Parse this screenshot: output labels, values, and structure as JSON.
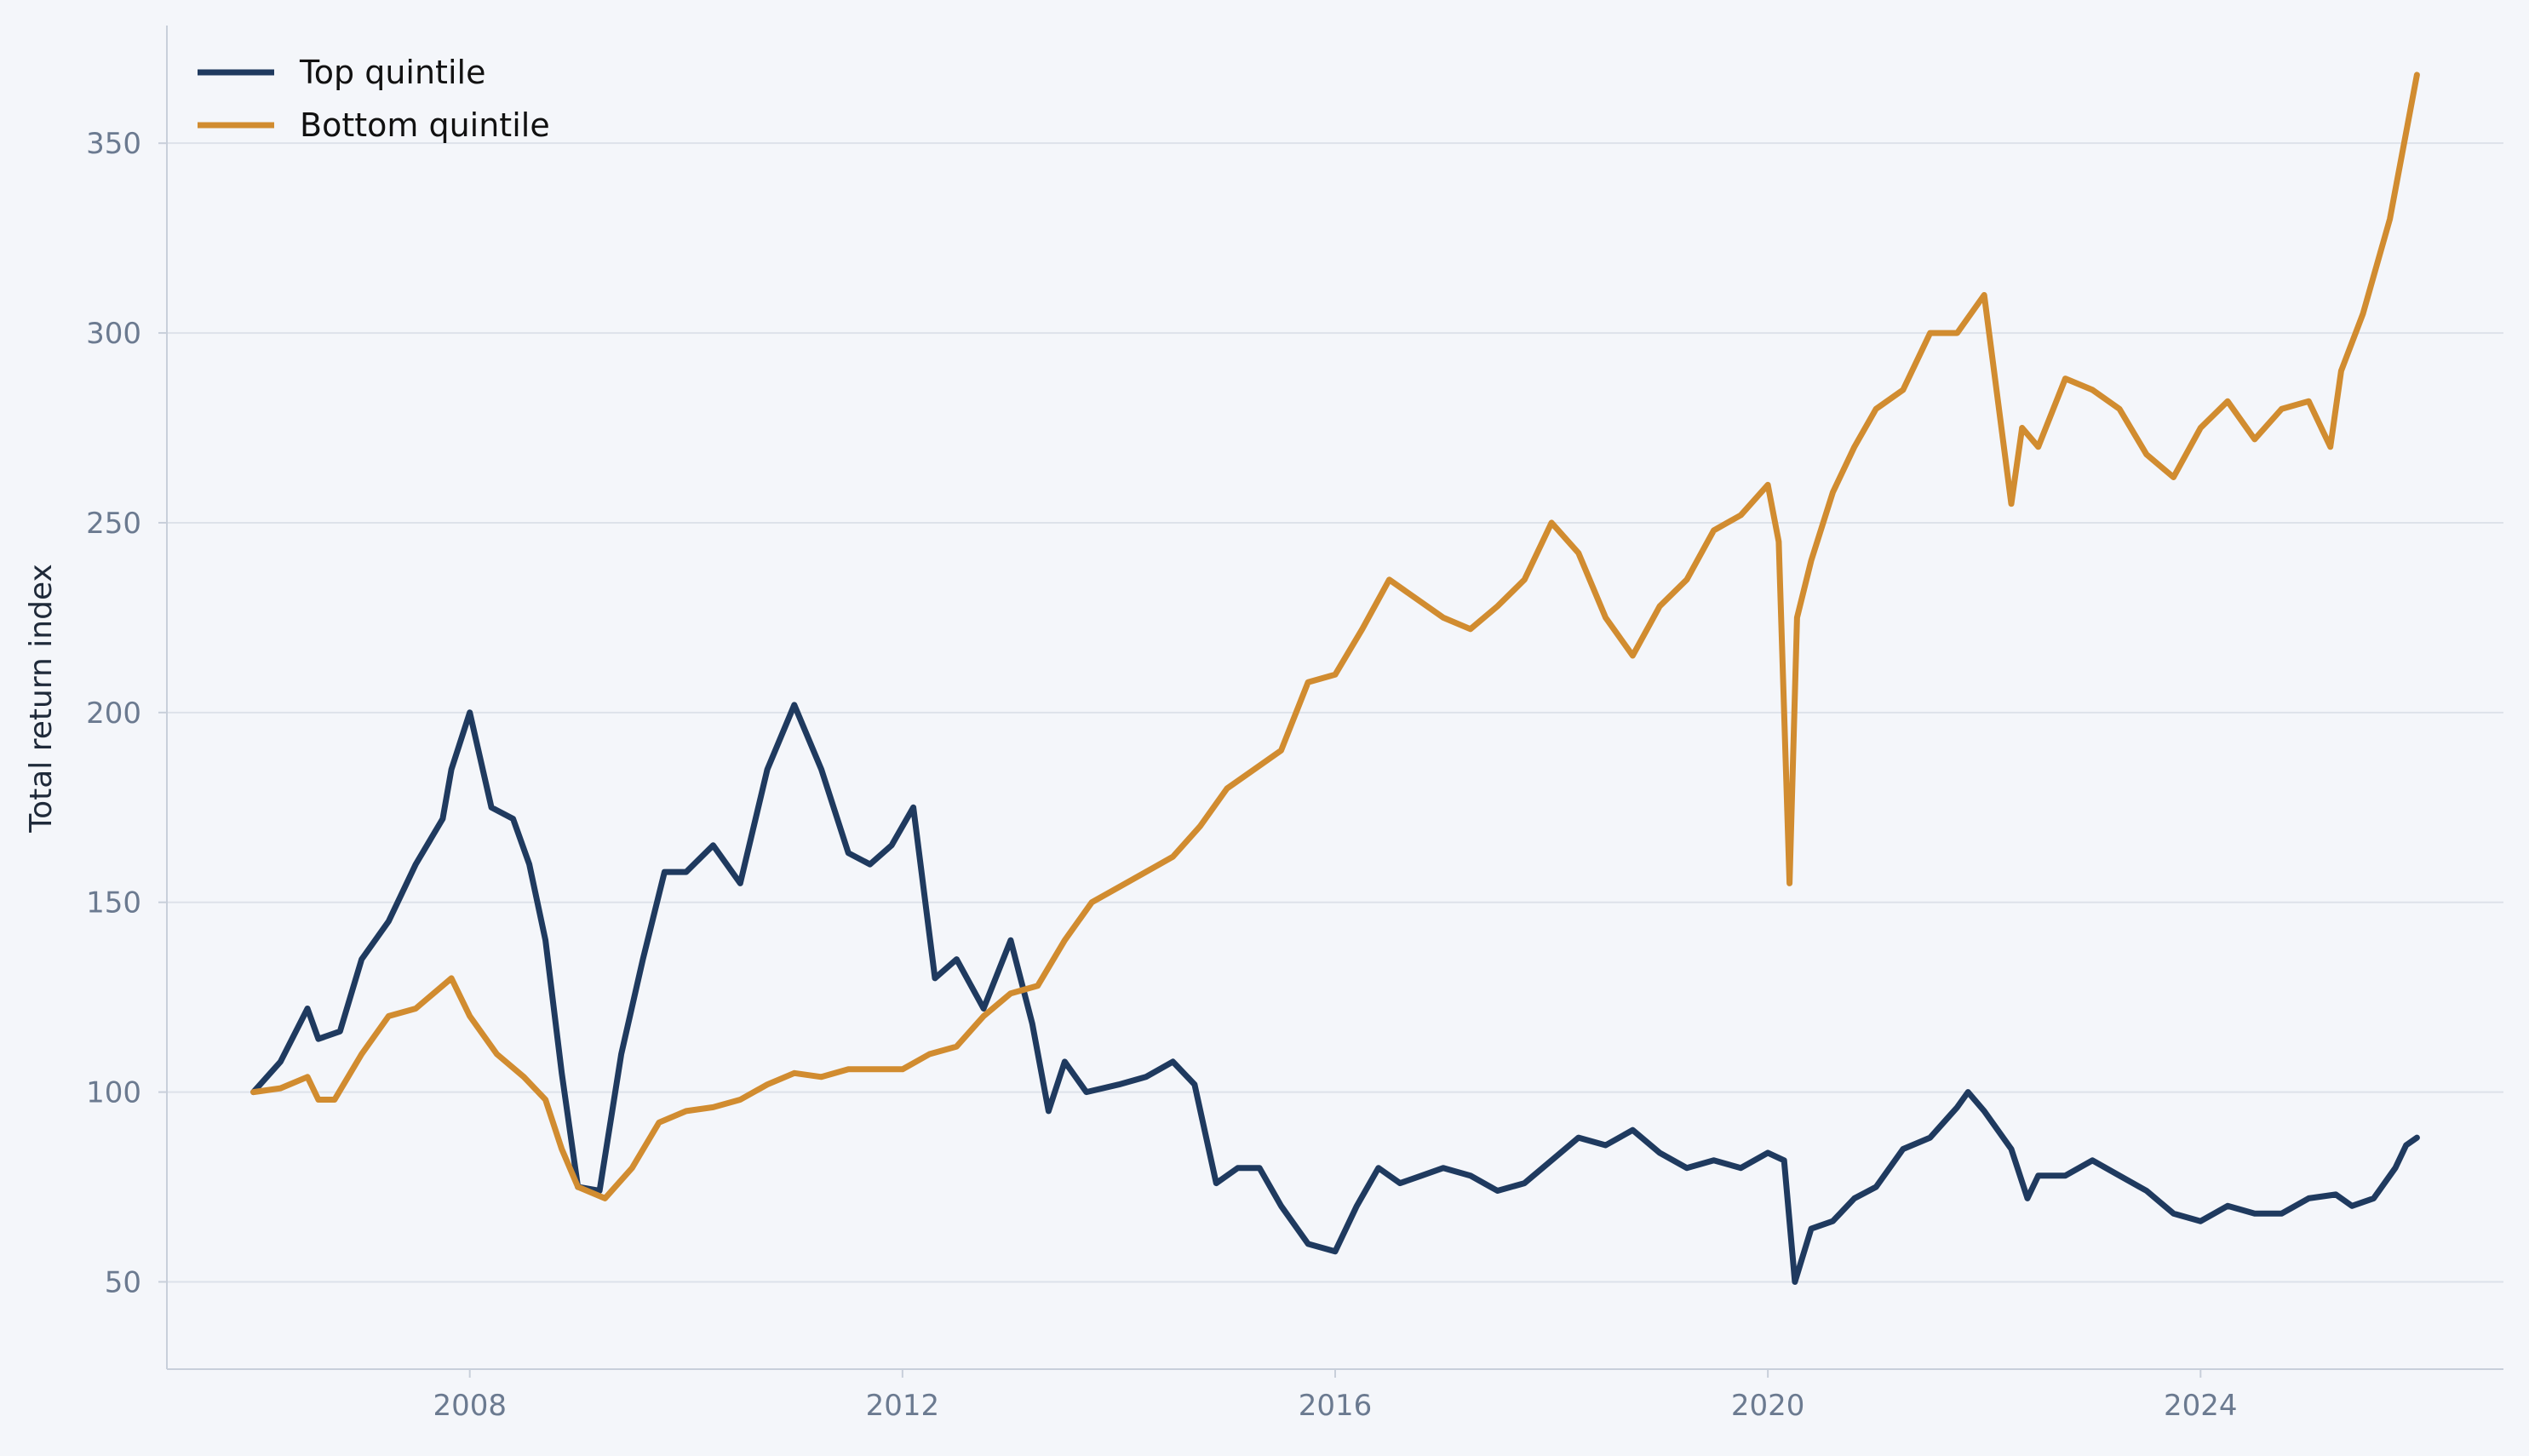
{
  "chart_data": {
    "type": "line",
    "title": "",
    "xlabel": "",
    "ylabel": "Total return index",
    "xlim": [
      2005.2,
      2026.8
    ],
    "ylim": [
      27,
      381
    ],
    "x_ticks": [
      2008,
      2012,
      2016,
      2020,
      2024
    ],
    "y_ticks": [
      50,
      100,
      150,
      200,
      250,
      300,
      350
    ],
    "grid": "horizontal",
    "legend_position": "top-left",
    "colors": {
      "background": "#f4f6fa",
      "grid": "#dde2ea",
      "axis": "#c8cfda",
      "tick_text": "#6b7a90"
    },
    "series": [
      {
        "name": "Top quintile",
        "color": "#1f3a5f",
        "x": [
          2006.0,
          2006.25,
          2006.5,
          2006.6,
          2006.8,
          2007.0,
          2007.25,
          2007.5,
          2007.75,
          2007.83,
          2008.0,
          2008.2,
          2008.4,
          2008.55,
          2008.7,
          2008.85,
          2009.0,
          2009.2,
          2009.4,
          2009.6,
          2009.8,
          2010.0,
          2010.25,
          2010.5,
          2010.75,
          2011.0,
          2011.25,
          2011.5,
          2011.7,
          2011.9,
          2012.1,
          2012.3,
          2012.5,
          2012.75,
          2013.0,
          2013.2,
          2013.35,
          2013.5,
          2013.7,
          2014.0,
          2014.25,
          2014.5,
          2014.7,
          2014.9,
          2015.1,
          2015.3,
          2015.5,
          2015.75,
          2016.0,
          2016.2,
          2016.4,
          2016.6,
          2016.8,
          2017.0,
          2017.25,
          2017.5,
          2017.75,
          2018.0,
          2018.25,
          2018.5,
          2018.75,
          2019.0,
          2019.25,
          2019.5,
          2019.75,
          2020.0,
          2020.15,
          2020.25,
          2020.4,
          2020.6,
          2020.8,
          2021.0,
          2021.25,
          2021.5,
          2021.75,
          2021.85,
          2022.0,
          2022.25,
          2022.4,
          2022.5,
          2022.75,
          2023.0,
          2023.25,
          2023.5,
          2023.75,
          2024.0,
          2024.25,
          2024.5,
          2024.75,
          2025.0,
          2025.25,
          2025.4,
          2025.6,
          2025.8,
          2025.9,
          2026.0
        ],
        "values": [
          100,
          108,
          122,
          114,
          116,
          135,
          145,
          160,
          172,
          185,
          200,
          175,
          172,
          160,
          140,
          105,
          75,
          74,
          110,
          135,
          158,
          158,
          165,
          155,
          185,
          202,
          185,
          163,
          160,
          165,
          175,
          130,
          135,
          122,
          140,
          118,
          95,
          108,
          100,
          102,
          104,
          108,
          102,
          76,
          80,
          80,
          70,
          60,
          58,
          70,
          80,
          76,
          78,
          80,
          78,
          74,
          76,
          82,
          88,
          86,
          90,
          84,
          80,
          82,
          80,
          84,
          82,
          50,
          64,
          66,
          72,
          75,
          85,
          88,
          96,
          100,
          95,
          85,
          72,
          78,
          78,
          82,
          78,
          74,
          68,
          66,
          70,
          68,
          68,
          72,
          73,
          70,
          72,
          80,
          86,
          88
        ]
      },
      {
        "name": "Bottom quintile",
        "color": "#d18c30",
        "x": [
          2006.0,
          2006.25,
          2006.5,
          2006.6,
          2006.75,
          2007.0,
          2007.25,
          2007.5,
          2007.83,
          2008.0,
          2008.25,
          2008.5,
          2008.7,
          2008.85,
          2009.0,
          2009.25,
          2009.5,
          2009.75,
          2010.0,
          2010.25,
          2010.5,
          2010.75,
          2011.0,
          2011.25,
          2011.5,
          2011.75,
          2012.0,
          2012.25,
          2012.5,
          2012.75,
          2013.0,
          2013.25,
          2013.5,
          2013.75,
          2014.0,
          2014.25,
          2014.5,
          2014.75,
          2015.0,
          2015.25,
          2015.5,
          2015.75,
          2016.0,
          2016.25,
          2016.5,
          2016.75,
          2017.0,
          2017.25,
          2017.5,
          2017.75,
          2018.0,
          2018.25,
          2018.5,
          2018.75,
          2019.0,
          2019.25,
          2019.5,
          2019.75,
          2020.0,
          2020.1,
          2020.2,
          2020.27,
          2020.4,
          2020.6,
          2020.8,
          2021.0,
          2021.25,
          2021.5,
          2021.75,
          2022.0,
          2022.25,
          2022.35,
          2022.5,
          2022.75,
          2023.0,
          2023.25,
          2023.5,
          2023.75,
          2024.0,
          2024.25,
          2024.5,
          2024.75,
          2025.0,
          2025.2,
          2025.3,
          2025.5,
          2025.75,
          2026.0
        ],
        "values": [
          100,
          101,
          104,
          98,
          98,
          110,
          120,
          122,
          130,
          120,
          110,
          104,
          98,
          85,
          75,
          72,
          80,
          92,
          95,
          96,
          98,
          102,
          105,
          104,
          106,
          106,
          106,
          110,
          112,
          120,
          126,
          128,
          140,
          150,
          154,
          158,
          162,
          170,
          180,
          185,
          190,
          208,
          210,
          222,
          235,
          230,
          225,
          222,
          228,
          235,
          250,
          242,
          225,
          215,
          228,
          235,
          248,
          252,
          260,
          245,
          155,
          225,
          240,
          258,
          270,
          280,
          285,
          300,
          300,
          310,
          255,
          275,
          270,
          288,
          285,
          280,
          268,
          262,
          275,
          282,
          272,
          280,
          282,
          270,
          290,
          305,
          330,
          368
        ]
      }
    ]
  }
}
